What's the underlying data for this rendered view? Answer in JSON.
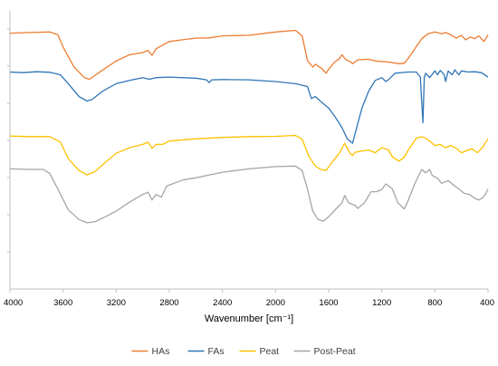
{
  "chart_data": {
    "type": "line",
    "xlabel": "Wavenumber [cm⁻¹]",
    "x_ticks": [
      4000,
      3600,
      3200,
      2800,
      2400,
      2000,
      1600,
      1200,
      800,
      400
    ],
    "xlim": [
      4000,
      400
    ],
    "x_reversed": true,
    "y_tick_labels_shown": false,
    "y_tick_count": 7,
    "grid": false,
    "legend_position": "bottom",
    "series": [
      {
        "name": "HAs",
        "color": "#ED7D31",
        "points": [
          [
            4000,
            0.08
          ],
          [
            3850,
            0.078
          ],
          [
            3700,
            0.076
          ],
          [
            3640,
            0.086
          ],
          [
            3600,
            0.13
          ],
          [
            3520,
            0.2
          ],
          [
            3440,
            0.24
          ],
          [
            3400,
            0.246
          ],
          [
            3340,
            0.225
          ],
          [
            3200,
            0.18
          ],
          [
            3100,
            0.158
          ],
          [
            3000,
            0.15
          ],
          [
            2960,
            0.142
          ],
          [
            2930,
            0.16
          ],
          [
            2900,
            0.136
          ],
          [
            2800,
            0.11
          ],
          [
            2700,
            0.104
          ],
          [
            2600,
            0.098
          ],
          [
            2500,
            0.097
          ],
          [
            2400,
            0.09
          ],
          [
            2200,
            0.088
          ],
          [
            2000,
            0.076
          ],
          [
            1850,
            0.07
          ],
          [
            1800,
            0.09
          ],
          [
            1760,
            0.178
          ],
          [
            1720,
            0.202
          ],
          [
            1700,
            0.192
          ],
          [
            1650,
            0.208
          ],
          [
            1620,
            0.224
          ],
          [
            1600,
            0.21
          ],
          [
            1560,
            0.186
          ],
          [
            1520,
            0.172
          ],
          [
            1500,
            0.158
          ],
          [
            1470,
            0.176
          ],
          [
            1440,
            0.182
          ],
          [
            1420,
            0.19
          ],
          [
            1380,
            0.176
          ],
          [
            1300,
            0.174
          ],
          [
            1250,
            0.18
          ],
          [
            1150,
            0.184
          ],
          [
            1070,
            0.19
          ],
          [
            1030,
            0.188
          ],
          [
            1000,
            0.17
          ],
          [
            900,
            0.1
          ],
          [
            850,
            0.082
          ],
          [
            800,
            0.076
          ],
          [
            750,
            0.082
          ],
          [
            720,
            0.078
          ],
          [
            680,
            0.086
          ],
          [
            640,
            0.098
          ],
          [
            600,
            0.088
          ],
          [
            570,
            0.104
          ],
          [
            530,
            0.094
          ],
          [
            500,
            0.1
          ],
          [
            470,
            0.09
          ],
          [
            430,
            0.11
          ],
          [
            400,
            0.086
          ]
        ]
      },
      {
        "name": "FAs",
        "color": "#2E75B6",
        "points": [
          [
            4000,
            0.22
          ],
          [
            3900,
            0.222
          ],
          [
            3800,
            0.219
          ],
          [
            3700,
            0.221
          ],
          [
            3620,
            0.23
          ],
          [
            3550,
            0.268
          ],
          [
            3480,
            0.308
          ],
          [
            3420,
            0.324
          ],
          [
            3380,
            0.318
          ],
          [
            3300,
            0.288
          ],
          [
            3200,
            0.262
          ],
          [
            3100,
            0.25
          ],
          [
            3000,
            0.24
          ],
          [
            2950,
            0.246
          ],
          [
            2900,
            0.24
          ],
          [
            2800,
            0.238
          ],
          [
            2600,
            0.242
          ],
          [
            2520,
            0.248
          ],
          [
            2500,
            0.258
          ],
          [
            2480,
            0.248
          ],
          [
            2400,
            0.247
          ],
          [
            2200,
            0.248
          ],
          [
            2000,
            0.254
          ],
          [
            1850,
            0.262
          ],
          [
            1760,
            0.272
          ],
          [
            1730,
            0.315
          ],
          [
            1700,
            0.308
          ],
          [
            1650,
            0.33
          ],
          [
            1600,
            0.35
          ],
          [
            1550,
            0.382
          ],
          [
            1500,
            0.42
          ],
          [
            1460,
            0.46
          ],
          [
            1420,
            0.476
          ],
          [
            1400,
            0.44
          ],
          [
            1350,
            0.35
          ],
          [
            1300,
            0.29
          ],
          [
            1250,
            0.25
          ],
          [
            1200,
            0.24
          ],
          [
            1170,
            0.254
          ],
          [
            1150,
            0.248
          ],
          [
            1100,
            0.224
          ],
          [
            1000,
            0.22
          ],
          [
            940,
            0.22
          ],
          [
            910,
            0.238
          ],
          [
            890,
            0.402
          ],
          [
            880,
            0.238
          ],
          [
            870,
            0.224
          ],
          [
            840,
            0.24
          ],
          [
            800,
            0.216
          ],
          [
            780,
            0.23
          ],
          [
            760,
            0.214
          ],
          [
            730,
            0.23
          ],
          [
            720,
            0.254
          ],
          [
            700,
            0.216
          ],
          [
            670,
            0.23
          ],
          [
            650,
            0.212
          ],
          [
            620,
            0.23
          ],
          [
            600,
            0.216
          ],
          [
            550,
            0.22
          ],
          [
            500,
            0.219
          ],
          [
            450,
            0.222
          ],
          [
            400,
            0.238
          ]
        ]
      },
      {
        "name": "Peat",
        "color": "#FFC000",
        "points": [
          [
            4000,
            0.45
          ],
          [
            3850,
            0.452
          ],
          [
            3700,
            0.452
          ],
          [
            3620,
            0.472
          ],
          [
            3560,
            0.532
          ],
          [
            3480,
            0.574
          ],
          [
            3420,
            0.59
          ],
          [
            3360,
            0.578
          ],
          [
            3280,
            0.544
          ],
          [
            3200,
            0.512
          ],
          [
            3100,
            0.492
          ],
          [
            3000,
            0.48
          ],
          [
            2960,
            0.472
          ],
          [
            2930,
            0.494
          ],
          [
            2900,
            0.48
          ],
          [
            2850,
            0.48
          ],
          [
            2800,
            0.468
          ],
          [
            2600,
            0.46
          ],
          [
            2400,
            0.455
          ],
          [
            2200,
            0.452
          ],
          [
            2000,
            0.451
          ],
          [
            1850,
            0.448
          ],
          [
            1800,
            0.462
          ],
          [
            1750,
            0.522
          ],
          [
            1700,
            0.558
          ],
          [
            1660,
            0.57
          ],
          [
            1620,
            0.574
          ],
          [
            1580,
            0.548
          ],
          [
            1520,
            0.512
          ],
          [
            1480,
            0.476
          ],
          [
            1440,
            0.512
          ],
          [
            1420,
            0.52
          ],
          [
            1400,
            0.508
          ],
          [
            1300,
            0.5
          ],
          [
            1250,
            0.51
          ],
          [
            1200,
            0.492
          ],
          [
            1150,
            0.5
          ],
          [
            1120,
            0.525
          ],
          [
            1070,
            0.54
          ],
          [
            1030,
            0.525
          ],
          [
            1000,
            0.5
          ],
          [
            940,
            0.458
          ],
          [
            900,
            0.452
          ],
          [
            860,
            0.46
          ],
          [
            800,
            0.484
          ],
          [
            760,
            0.48
          ],
          [
            720,
            0.492
          ],
          [
            680,
            0.484
          ],
          [
            640,
            0.494
          ],
          [
            600,
            0.51
          ],
          [
            560,
            0.502
          ],
          [
            520,
            0.496
          ],
          [
            480,
            0.51
          ],
          [
            440,
            0.49
          ],
          [
            400,
            0.46
          ]
        ]
      },
      {
        "name": "Post-Peat",
        "color": "#A5A5A5",
        "points": [
          [
            4000,
            0.568
          ],
          [
            3850,
            0.57
          ],
          [
            3750,
            0.57
          ],
          [
            3700,
            0.585
          ],
          [
            3640,
            0.64
          ],
          [
            3560,
            0.716
          ],
          [
            3480,
            0.75
          ],
          [
            3420,
            0.762
          ],
          [
            3360,
            0.758
          ],
          [
            3280,
            0.74
          ],
          [
            3200,
            0.72
          ],
          [
            3100,
            0.688
          ],
          [
            3000,
            0.66
          ],
          [
            2960,
            0.652
          ],
          [
            2930,
            0.68
          ],
          [
            2900,
            0.66
          ],
          [
            2860,
            0.67
          ],
          [
            2820,
            0.63
          ],
          [
            2700,
            0.608
          ],
          [
            2600,
            0.6
          ],
          [
            2400,
            0.58
          ],
          [
            2200,
            0.568
          ],
          [
            2000,
            0.56
          ],
          [
            1850,
            0.558
          ],
          [
            1800,
            0.574
          ],
          [
            1760,
            0.64
          ],
          [
            1720,
            0.72
          ],
          [
            1680,
            0.75
          ],
          [
            1640,
            0.756
          ],
          [
            1600,
            0.74
          ],
          [
            1560,
            0.72
          ],
          [
            1500,
            0.69
          ],
          [
            1480,
            0.664
          ],
          [
            1450,
            0.69
          ],
          [
            1400,
            0.7
          ],
          [
            1380,
            0.71
          ],
          [
            1330,
            0.69
          ],
          [
            1280,
            0.65
          ],
          [
            1240,
            0.65
          ],
          [
            1200,
            0.642
          ],
          [
            1170,
            0.622
          ],
          [
            1120,
            0.64
          ],
          [
            1080,
            0.69
          ],
          [
            1030,
            0.712
          ],
          [
            1000,
            0.68
          ],
          [
            950,
            0.62
          ],
          [
            900,
            0.57
          ],
          [
            870,
            0.582
          ],
          [
            840,
            0.57
          ],
          [
            820,
            0.592
          ],
          [
            780,
            0.602
          ],
          [
            750,
            0.62
          ],
          [
            700,
            0.61
          ],
          [
            660,
            0.626
          ],
          [
            620,
            0.64
          ],
          [
            580,
            0.656
          ],
          [
            540,
            0.66
          ],
          [
            500,
            0.674
          ],
          [
            470,
            0.68
          ],
          [
            440,
            0.672
          ],
          [
            420,
            0.66
          ],
          [
            400,
            0.64
          ]
        ]
      }
    ]
  }
}
